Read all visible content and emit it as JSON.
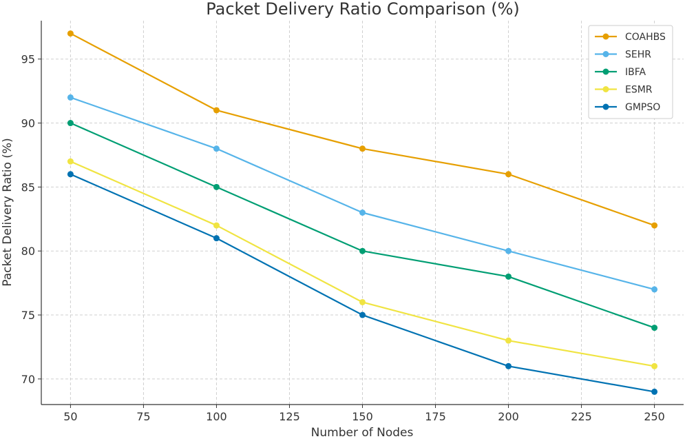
{
  "chart_data": {
    "type": "line",
    "title": "Packet Delivery Ratio Comparison (%)",
    "xlabel": "Number of Nodes",
    "ylabel": "Packet Delivery Ratio (%)",
    "x": [
      50,
      100,
      150,
      200,
      250
    ],
    "xlim": [
      40,
      260
    ],
    "ylim": [
      68,
      98
    ],
    "xticks": [
      50,
      75,
      100,
      125,
      150,
      175,
      200,
      225,
      250
    ],
    "yticks": [
      70,
      75,
      80,
      85,
      90,
      95
    ],
    "grid": true,
    "legend_position": "top-right",
    "series": [
      {
        "name": "COAHBS",
        "color": "#E69F00",
        "values": [
          97,
          91,
          88,
          86,
          82
        ]
      },
      {
        "name": "SEHR",
        "color": "#56B4E9",
        "values": [
          92,
          88,
          83,
          80,
          77
        ]
      },
      {
        "name": "IBFA",
        "color": "#009E73",
        "values": [
          90,
          85,
          80,
          78,
          74
        ]
      },
      {
        "name": "ESMR",
        "color": "#F0E442",
        "values": [
          87,
          82,
          76,
          73,
          71
        ]
      },
      {
        "name": "GMPSO",
        "color": "#0072B2",
        "values": [
          86,
          81,
          75,
          71,
          69
        ]
      }
    ]
  }
}
